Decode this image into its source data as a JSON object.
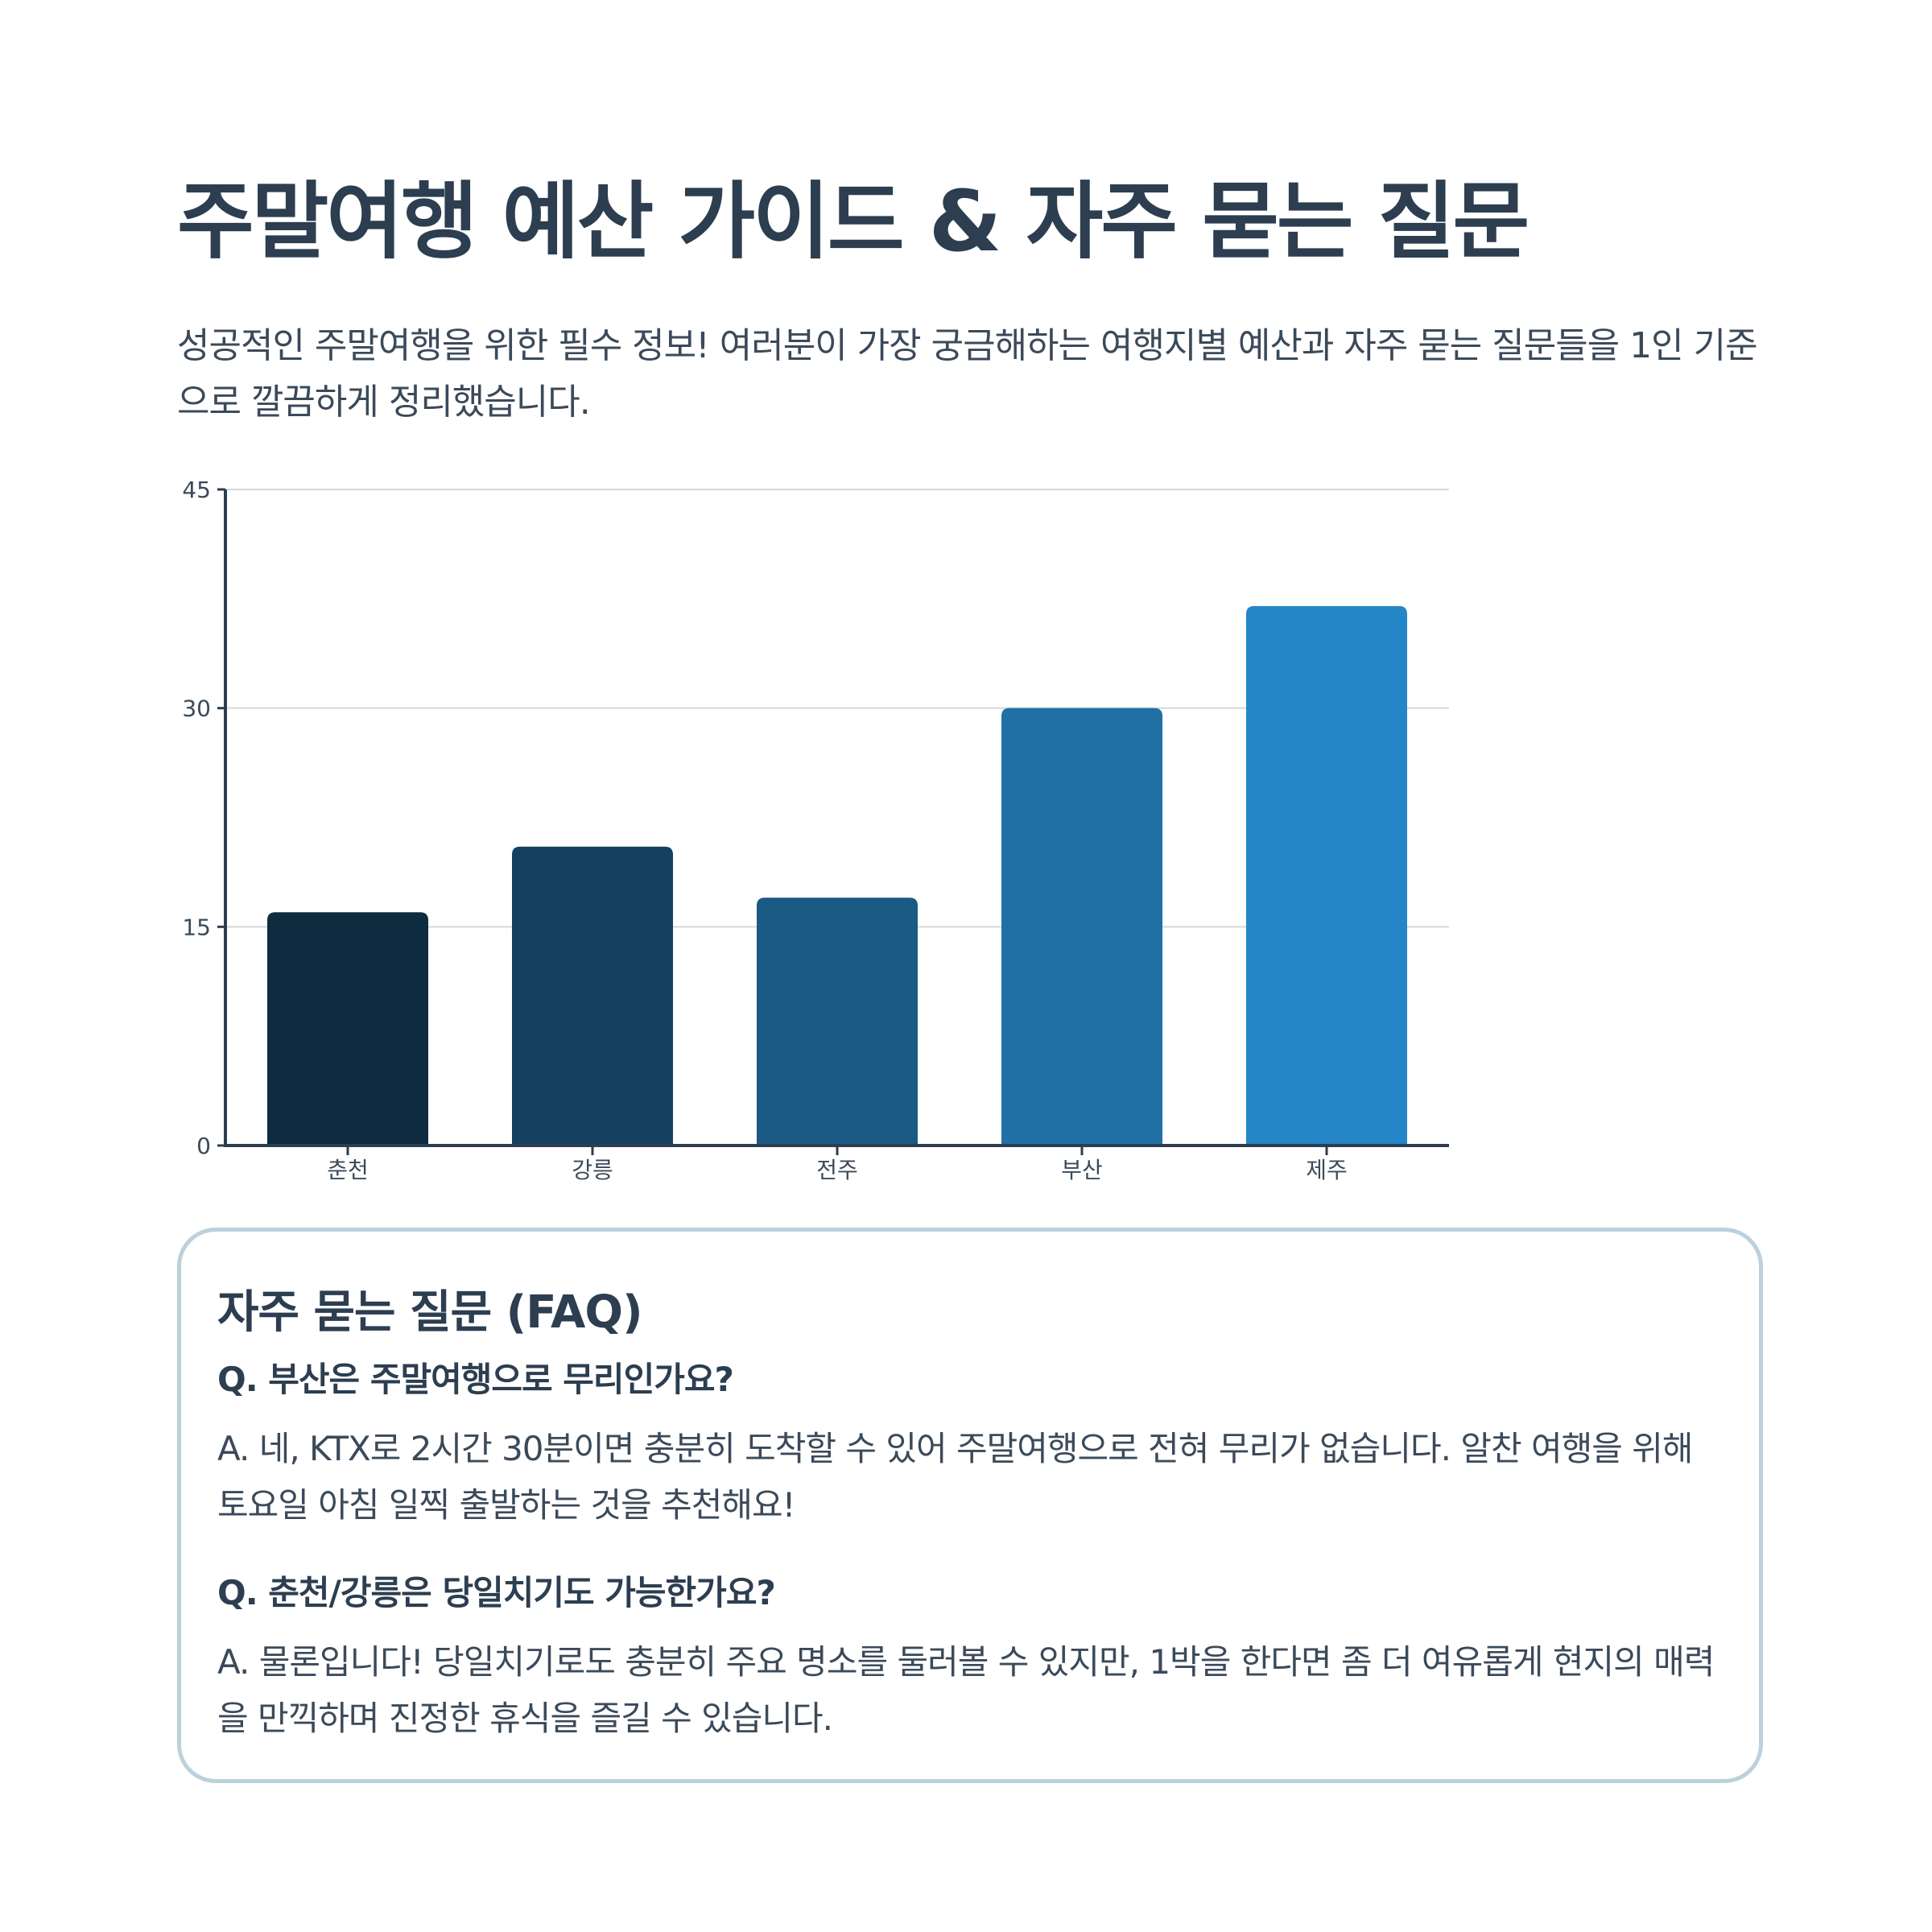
{
  "header": {
    "title": "주말여행 예산 가이드 & 자주 묻는 질문",
    "intro": "성공적인 주말여행을 위한 필수 정보! 여러분이 가장 궁금해하는 여행지별 예산과 자주 묻는 질문들을 1인 기준으로 깔끔하게 정리했습니다."
  },
  "chart_data": {
    "type": "bar",
    "categories": [
      "춘천",
      "강릉",
      "전주",
      "부산",
      "제주"
    ],
    "values": [
      16,
      20.5,
      17,
      30,
      37
    ],
    "colors": [
      "#0f2b40",
      "#13415f",
      "#1b5a83",
      "#2070a6",
      "#2586c7"
    ],
    "ylim": [
      0,
      45
    ],
    "yticks": [
      0,
      15,
      30,
      45
    ],
    "grid": true,
    "title": "",
    "xlabel": "",
    "ylabel": ""
  },
  "faq": {
    "title": "자주 묻는 질문 (FAQ)",
    "items": [
      {
        "q": "Q. 부산은 주말여행으로 무리인가요?",
        "a": "A. 네, KTX로 2시간 30분이면 충분히 도착할 수 있어 주말여행으로 전혀 무리가 없습니다. 알찬 여행을 위해 토요일 아침 일찍 출발하는 것을 추천해요!"
      },
      {
        "q": "Q. 춘천/강릉은 당일치기도 가능한가요?",
        "a": "A. 물론입니다! 당일치기로도 충분히 주요 명소를 둘러볼 수 있지만, 1박을 한다면 좀 더 여유롭게 현지의 매력을 만끽하며 진정한 휴식을 즐길 수 있습니다."
      }
    ],
    "border_color": "#bcd0dd"
  }
}
